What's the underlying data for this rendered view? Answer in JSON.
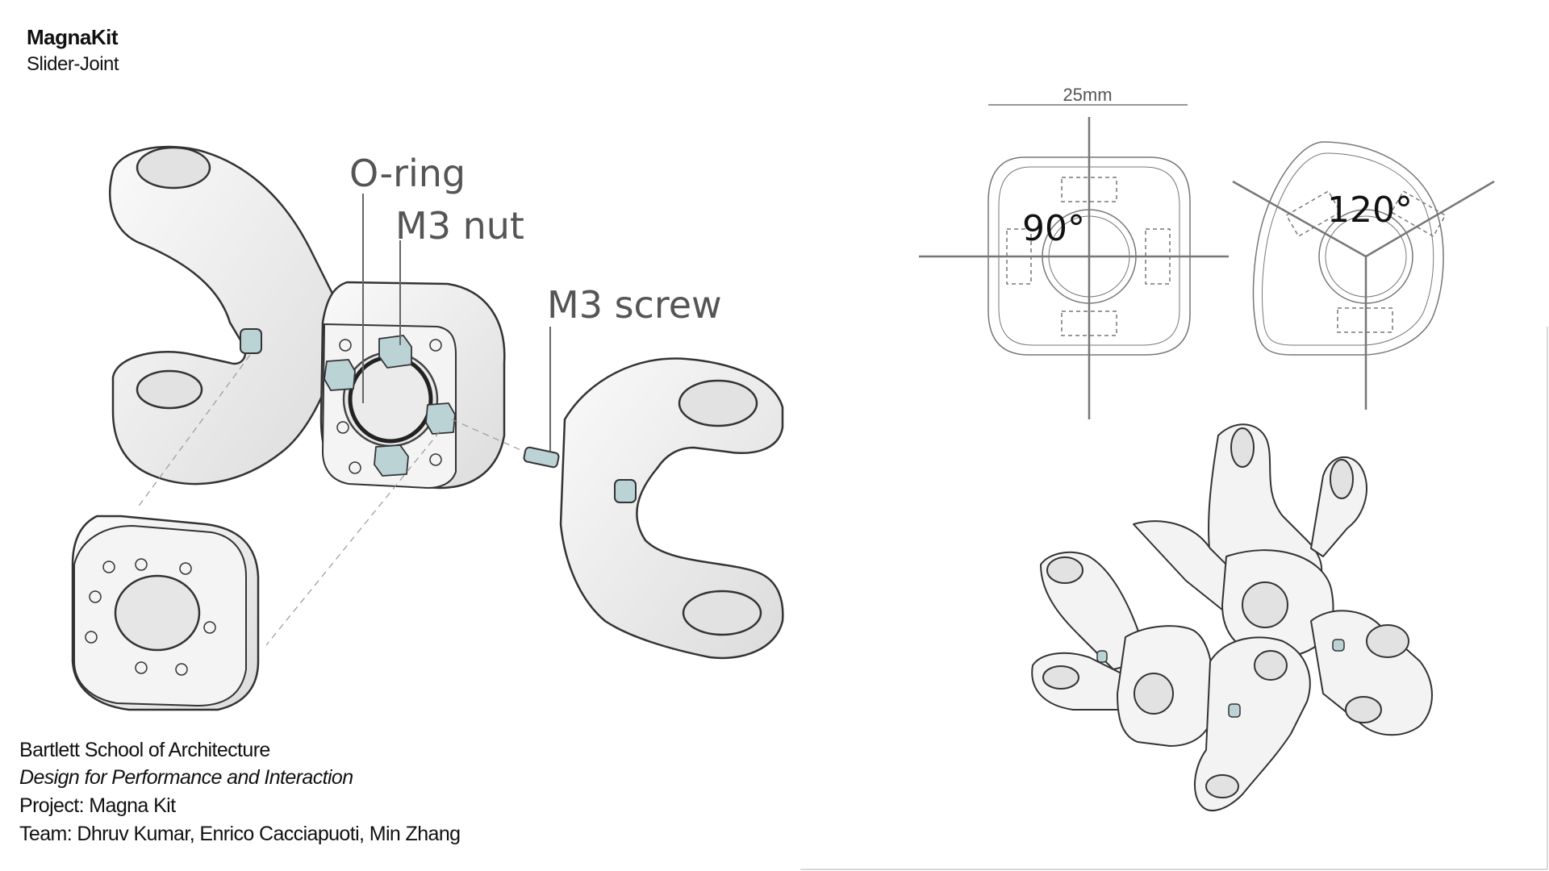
{
  "header": {
    "title": "MagnaKit",
    "subtitle": "Slider-Joint"
  },
  "labels": {
    "o_ring": "O-ring",
    "m3_nut": "M3 nut",
    "m3_screw": "M3 screw"
  },
  "dimension": {
    "width": "25mm"
  },
  "angles": {
    "square": "90°",
    "triangle": "120°"
  },
  "credits": {
    "school": "Bartlett School of Architecture",
    "course": "Design for Performance and Interaction",
    "project": "Project: Magna Kit",
    "team": "Team: Dhruv Kumar, Enrico Cacciapuoti, Min Zhang"
  },
  "colors": {
    "part_fill": "#f1f1f1",
    "outline": "#333333",
    "hardware": "#bcd3d6",
    "annotation": "#666666"
  }
}
